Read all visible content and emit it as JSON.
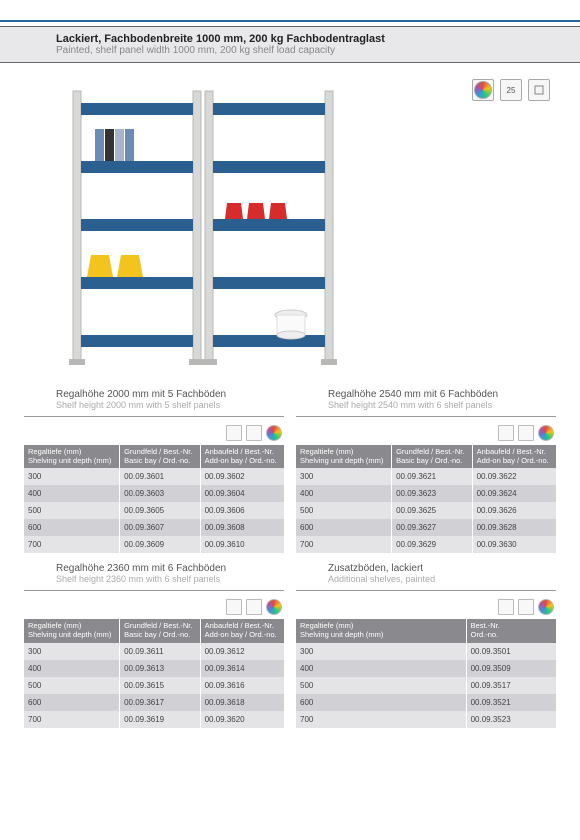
{
  "header": {
    "de": "Lackiert, Fachbodenbreite 1000 mm, 200 kg Fachbodentraglast",
    "en": "Painted, shelf panel width 1000 mm, 200 kg shelf load capacity"
  },
  "top_badge_text": "25",
  "colors": {
    "shelf_blue": "#2a5f8f",
    "frame_grey": "#d8d8d6",
    "header_grey": "#8a8a8e",
    "row_light": "#e4e4e7",
    "row_dark": "#d1d1d5"
  },
  "columns3": {
    "c1_de": "Regaltiefe (mm)",
    "c1_en": "Shelving unit depth (mm)",
    "c2_de": "Grundfeld / Best.-Nr.",
    "c2_en": "Basic bay / Ord.-no.",
    "c3_de": "Anbaufeld / Best.-Nr.",
    "c3_en": "Add-on bay / Ord.-no."
  },
  "columns2": {
    "c1_de": "Regaltiefe (mm)",
    "c1_en": "Shelving unit depth (mm)",
    "c2_de": "Best.-Nr.",
    "c2_en": "Ord.-no."
  },
  "sections": [
    {
      "title_de": "Regalhöhe 2000 mm mit 5 Fachböden",
      "title_en": "Shelf height 2000 mm with 5 shelf panels",
      "type": "three",
      "rows": [
        [
          "300",
          "00.09.3601",
          "00.09.3602"
        ],
        [
          "400",
          "00.09.3603",
          "00.09.3604"
        ],
        [
          "500",
          "00.09.3605",
          "00.09.3606"
        ],
        [
          "600",
          "00.09.3607",
          "00.09.3608"
        ],
        [
          "700",
          "00.09.3609",
          "00.09.3610"
        ]
      ]
    },
    {
      "title_de": "Regalhöhe 2540 mm mit 6 Fachböden",
      "title_en": "Shelf height 2540 mm with 6 shelf panels",
      "type": "three",
      "rows": [
        [
          "300",
          "00.09.3621",
          "00.09.3622"
        ],
        [
          "400",
          "00.09.3623",
          "00.09.3624"
        ],
        [
          "500",
          "00.09.3625",
          "00.09.3626"
        ],
        [
          "600",
          "00.09.3627",
          "00.09.3628"
        ],
        [
          "700",
          "00.09.3629",
          "00.09.3630"
        ]
      ]
    },
    {
      "title_de": "Regalhöhe 2360 mm mit 6 Fachböden",
      "title_en": "Shelf height 2360 mm with 6 shelf panels",
      "type": "three",
      "rows": [
        [
          "300",
          "00.09.3611",
          "00.09.3612"
        ],
        [
          "400",
          "00.09.3613",
          "00.09.3614"
        ],
        [
          "500",
          "00.09.3615",
          "00.09.3616"
        ],
        [
          "600",
          "00.09.3617",
          "00.09.3618"
        ],
        [
          "700",
          "00.09.3619",
          "00.09.3620"
        ]
      ]
    },
    {
      "title_de": "Zusatzböden, lackiert",
      "title_en": "Additional shelves, painted",
      "type": "two",
      "rows": [
        [
          "300",
          "00.09.3501"
        ],
        [
          "400",
          "00.09.3509"
        ],
        [
          "500",
          "00.09.3517"
        ],
        [
          "600",
          "00.09.3521"
        ],
        [
          "700",
          "00.09.3523"
        ]
      ]
    }
  ]
}
